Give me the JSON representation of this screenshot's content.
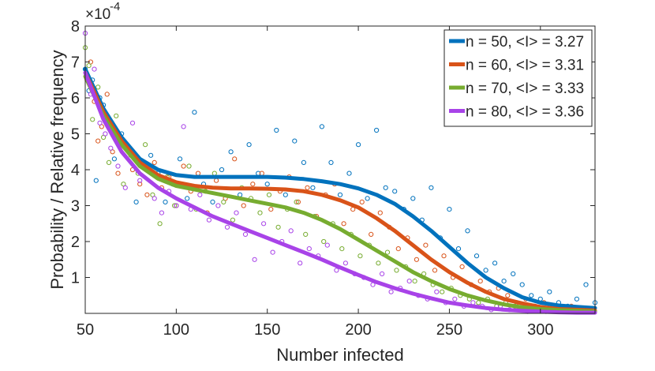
{
  "chart_data": {
    "type": "scatter",
    "title": "",
    "xlabel": "Number infected",
    "ylabel": "Probability / Relative frequency",
    "exponent_label": "×10",
    "exponent_power": "-4",
    "xlim": [
      50,
      330
    ],
    "ylim": [
      0,
      8
    ],
    "xticks": [
      50,
      100,
      150,
      200,
      250,
      300
    ],
    "yticks": [
      1,
      2,
      3,
      4,
      5,
      6,
      7,
      8
    ],
    "grid": false,
    "legend_position": "top-right",
    "series": [
      {
        "name": "n = 50, <I> = 3.27",
        "color": "#0072BD",
        "fit_x": [
          50,
          60,
          70,
          80,
          90,
          100,
          110,
          120,
          130,
          140,
          150,
          160,
          170,
          180,
          190,
          200,
          210,
          220,
          230,
          240,
          250,
          260,
          270,
          280,
          290,
          300,
          310,
          320,
          330
        ],
        "fit_y": [
          6.8,
          5.7,
          4.9,
          4.3,
          4.0,
          3.85,
          3.8,
          3.8,
          3.8,
          3.8,
          3.8,
          3.78,
          3.74,
          3.68,
          3.6,
          3.48,
          3.3,
          3.05,
          2.7,
          2.3,
          1.85,
          1.4,
          1.0,
          0.7,
          0.45,
          0.3,
          0.22,
          0.18,
          0.15
        ],
        "scatter_x": [
          50,
          52,
          54,
          56,
          58,
          60,
          63,
          66,
          70,
          74,
          78,
          82,
          86,
          90,
          94,
          98,
          102,
          106,
          110,
          115,
          120,
          125,
          130,
          135,
          140,
          145,
          150,
          155,
          160,
          165,
          170,
          175,
          180,
          185,
          190,
          195,
          200,
          205,
          210,
          215,
          220,
          225,
          230,
          235,
          240,
          245,
          250,
          255,
          260,
          265,
          270,
          275,
          280,
          285,
          290,
          295,
          300,
          305,
          310,
          315,
          320,
          325,
          330
        ],
        "scatter_y": [
          6.8,
          6.2,
          6.5,
          3.7,
          6.0,
          5.8,
          5.2,
          4.3,
          5.0,
          4.6,
          3.1,
          4.1,
          4.4,
          3.9,
          3.1,
          3.6,
          4.3,
          3.2,
          5.6,
          3.6,
          3.1,
          4.0,
          4.5,
          3.3,
          4.7,
          3.9,
          3.6,
          5.1,
          3.3,
          4.8,
          4.2,
          3.5,
          5.2,
          4.2,
          3.3,
          3.9,
          4.7,
          3.2,
          5.1,
          3.5,
          3.4,
          2.9,
          3.2,
          2.6,
          3.5,
          2.1,
          2.9,
          1.8,
          2.3,
          1.6,
          1.2,
          1.4,
          0.9,
          1.1,
          0.8,
          0.5,
          0.4,
          0.6,
          0.3,
          0.2,
          0.4,
          0.8,
          0.3
        ]
      },
      {
        "name": "n = 60, <I> = 3.31",
        "color": "#D95319",
        "fit_x": [
          50,
          60,
          70,
          80,
          90,
          100,
          110,
          120,
          130,
          140,
          150,
          160,
          170,
          180,
          190,
          200,
          210,
          220,
          230,
          240,
          250,
          260,
          270,
          280,
          290,
          300,
          310,
          320,
          330
        ],
        "fit_y": [
          6.7,
          5.6,
          4.8,
          4.2,
          3.85,
          3.65,
          3.55,
          3.5,
          3.48,
          3.48,
          3.47,
          3.45,
          3.4,
          3.3,
          3.15,
          2.95,
          2.65,
          2.3,
          1.9,
          1.5,
          1.15,
          0.85,
          0.6,
          0.4,
          0.28,
          0.18,
          0.12,
          0.1,
          0.08
        ],
        "scatter_x": [
          51,
          53,
          55,
          57,
          59,
          62,
          65,
          68,
          72,
          76,
          80,
          84,
          88,
          92,
          96,
          100,
          104,
          108,
          112,
          117,
          122,
          127,
          132,
          137,
          142,
          147,
          152,
          157,
          162,
          167,
          172,
          177,
          182,
          187,
          192,
          197,
          202,
          207,
          212,
          217,
          222,
          227,
          232,
          237,
          242,
          247,
          252,
          257,
          262,
          267,
          272,
          277,
          282,
          287,
          292,
          297,
          302,
          307,
          312,
          317,
          322,
          327
        ],
        "scatter_y": [
          6.5,
          7.0,
          5.9,
          4.8,
          5.2,
          6.1,
          4.5,
          3.9,
          4.7,
          4.0,
          3.6,
          3.3,
          4.2,
          3.5,
          3.8,
          3.0,
          4.1,
          3.4,
          3.9,
          2.8,
          3.7,
          3.2,
          4.3,
          3.0,
          3.6,
          3.9,
          2.9,
          3.4,
          3.8,
          3.1,
          3.5,
          2.7,
          3.3,
          3.6,
          2.5,
          2.9,
          3.1,
          2.2,
          2.8,
          2.4,
          1.8,
          2.1,
          1.5,
          1.9,
          1.2,
          1.6,
          1.0,
          1.3,
          0.8,
          0.9,
          0.6,
          0.7,
          0.5,
          0.3,
          0.4,
          0.2,
          0.3,
          0.2,
          0.1,
          0.2,
          0.1,
          0.1
        ]
      },
      {
        "name": "n = 70, <I> = 3.33",
        "color": "#77AC30",
        "fit_x": [
          50,
          60,
          70,
          80,
          90,
          100,
          110,
          120,
          130,
          140,
          150,
          160,
          170,
          180,
          190,
          200,
          210,
          220,
          230,
          240,
          250,
          260,
          270,
          280,
          290,
          300,
          310,
          320,
          330
        ],
        "fit_y": [
          6.6,
          5.5,
          4.7,
          4.1,
          3.75,
          3.55,
          3.45,
          3.35,
          3.25,
          3.15,
          3.05,
          2.95,
          2.8,
          2.6,
          2.35,
          2.05,
          1.75,
          1.45,
          1.15,
          0.9,
          0.68,
          0.5,
          0.36,
          0.25,
          0.17,
          0.12,
          0.09,
          0.07,
          0.05
        ],
        "scatter_x": [
          50,
          52,
          54,
          57,
          60,
          63,
          67,
          71,
          75,
          79,
          83,
          87,
          91,
          95,
          99,
          103,
          107,
          111,
          116,
          121,
          126,
          131,
          136,
          141,
          146,
          151,
          156,
          161,
          166,
          171,
          176,
          181,
          186,
          191,
          196,
          201,
          206,
          211,
          216,
          221,
          226,
          231,
          236,
          241,
          246,
          251,
          256,
          261,
          266,
          271,
          276,
          281,
          286,
          291,
          296,
          301,
          306,
          311,
          316,
          321,
          326
        ],
        "scatter_y": [
          7.4,
          6.9,
          5.4,
          6.3,
          4.9,
          4.2,
          5.5,
          3.6,
          4.4,
          3.9,
          4.7,
          3.3,
          2.5,
          3.8,
          3.0,
          3.6,
          4.1,
          2.9,
          3.4,
          3.9,
          3.1,
          2.6,
          3.5,
          3.2,
          2.8,
          3.3,
          2.4,
          2.9,
          3.1,
          2.2,
          2.7,
          2.0,
          2.5,
          1.8,
          2.2,
          1.6,
          1.9,
          1.4,
          1.7,
          1.2,
          1.3,
          0.9,
          1.1,
          0.8,
          0.6,
          0.7,
          0.5,
          0.4,
          0.3,
          0.4,
          0.2,
          0.3,
          0.2,
          0.1,
          0.2,
          0.1,
          0.1,
          0.1,
          0.1,
          0.05,
          0.1
        ]
      },
      {
        "name": "n = 80, <I> = 3.36",
        "color": "#A843E8",
        "fit_x": [
          50,
          60,
          70,
          80,
          90,
          100,
          110,
          120,
          130,
          140,
          150,
          160,
          170,
          180,
          190,
          200,
          210,
          220,
          230,
          240,
          250,
          260,
          270,
          280,
          290,
          300,
          310,
          320,
          330
        ],
        "fit_y": [
          6.7,
          5.4,
          4.5,
          3.9,
          3.5,
          3.2,
          2.95,
          2.7,
          2.5,
          2.3,
          2.1,
          1.9,
          1.7,
          1.5,
          1.28,
          1.07,
          0.87,
          0.7,
          0.55,
          0.42,
          0.3,
          0.22,
          0.15,
          0.1,
          0.07,
          0.05,
          0.03,
          0.02,
          0.02
        ],
        "scatter_x": [
          50,
          51,
          53,
          55,
          58,
          61,
          64,
          68,
          72,
          76,
          80,
          84,
          88,
          92,
          96,
          100,
          104,
          108,
          113,
          118,
          123,
          128,
          133,
          138,
          143,
          148,
          153,
          158,
          163,
          168,
          173,
          178,
          183,
          188,
          193,
          198,
          203,
          208,
          213,
          218,
          223,
          228,
          233,
          238,
          243,
          248,
          253,
          258,
          263,
          268,
          273,
          278,
          283,
          288,
          293,
          298,
          303,
          308,
          313,
          318,
          323,
          328
        ],
        "scatter_y": [
          7.8,
          6.6,
          6.1,
          6.8,
          5.3,
          5.0,
          4.6,
          4.1,
          3.5,
          5.3,
          3.7,
          4.0,
          3.2,
          2.8,
          3.4,
          3.0,
          5.2,
          2.9,
          3.3,
          2.6,
          3.0,
          2.4,
          2.8,
          2.2,
          1.5,
          2.5,
          1.7,
          2.0,
          2.3,
          1.4,
          1.8,
          1.6,
          1.9,
          1.2,
          1.4,
          1.1,
          1.0,
          0.8,
          1.1,
          0.6,
          0.7,
          0.9,
          0.5,
          0.4,
          0.6,
          0.3,
          0.4,
          0.2,
          0.3,
          0.2,
          0.1,
          0.2,
          0.1,
          0.1,
          0.05,
          0.1,
          0.05,
          0.1,
          0.05,
          0.05,
          0.05,
          0.1
        ]
      }
    ]
  }
}
